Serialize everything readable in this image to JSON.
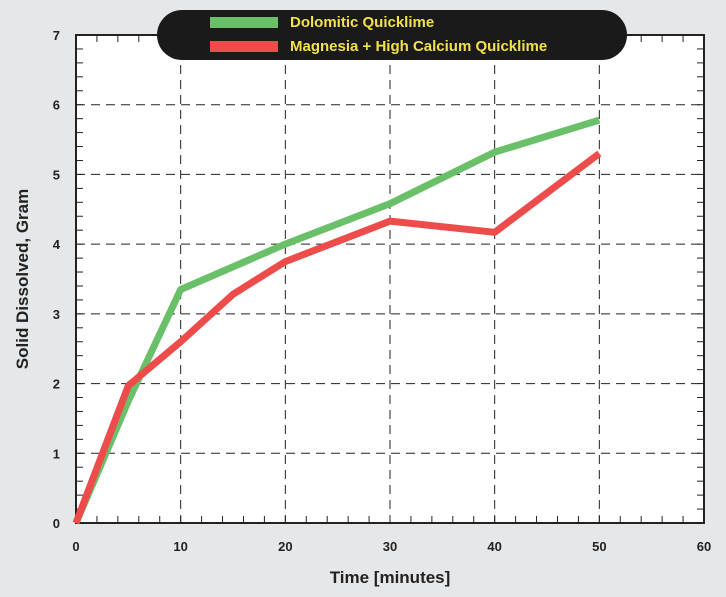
{
  "chart_data": {
    "type": "line",
    "title": "",
    "xlabel": "Time [minutes]",
    "ylabel": "Solid Dissolved, Gram",
    "xlim": [
      0,
      60
    ],
    "ylim": [
      0,
      7
    ],
    "x_ticks": [
      0,
      10,
      20,
      30,
      40,
      50,
      60
    ],
    "y_ticks": [
      0,
      1,
      2,
      3,
      4,
      5,
      6,
      7
    ],
    "grid": true,
    "legend_position": "top-center",
    "series": [
      {
        "name": "Dolomitic Quicklime",
        "color": "#6abf69",
        "x": [
          0,
          5,
          10,
          20,
          30,
          40,
          50
        ],
        "y": [
          0,
          1.75,
          3.35,
          4.0,
          4.58,
          5.32,
          5.78
        ]
      },
      {
        "name": "Magnesia + High Calcium Quicklime",
        "color": "#ee4b4b",
        "x": [
          0,
          5,
          10,
          15,
          20,
          30,
          40,
          50
        ],
        "y": [
          0,
          1.97,
          2.6,
          3.28,
          3.75,
          4.33,
          4.17,
          5.3
        ]
      }
    ]
  }
}
